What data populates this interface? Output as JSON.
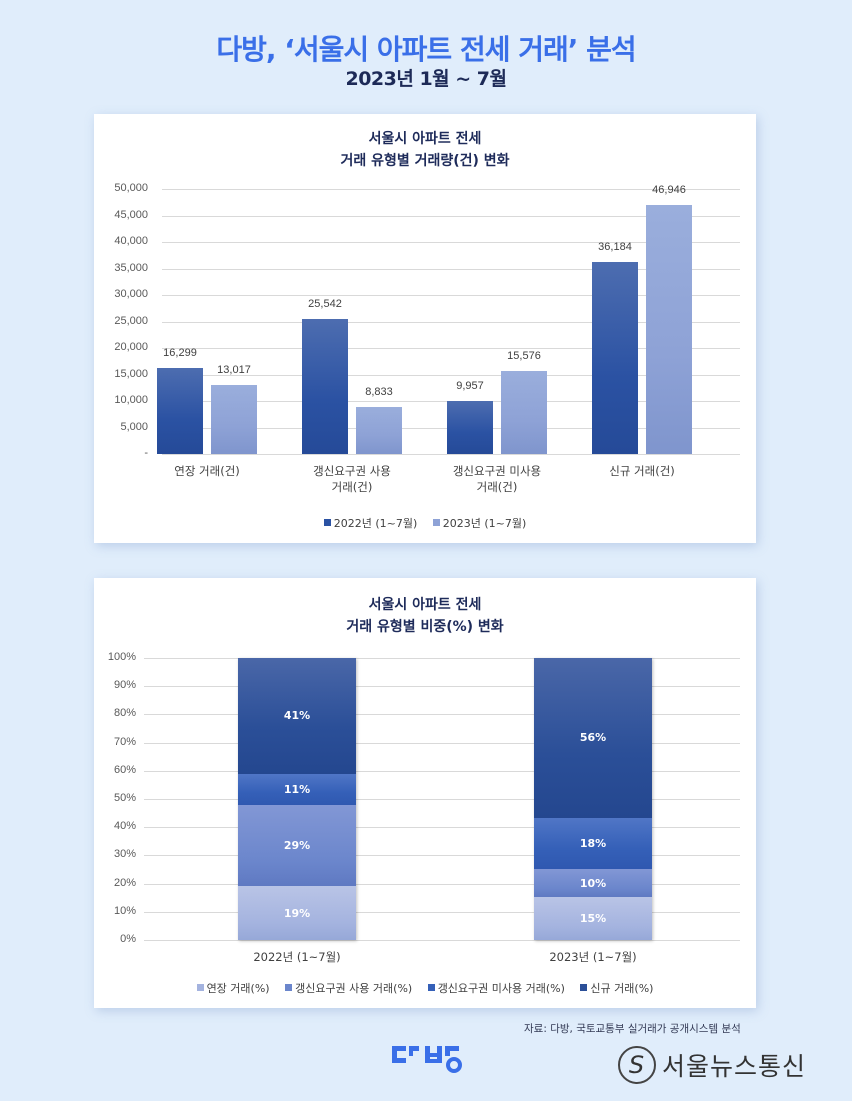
{
  "header": {
    "title": "다방, ‘서울시 아파트 전세 거래’ 분석",
    "subtitle": "2023년 1월 ~ 7월"
  },
  "colors": {
    "title_blue": "#3a6fe8",
    "subtitle_navy": "#1d2a57",
    "background": "#e0edfb",
    "series_2022": "#2b52a3",
    "series_2023": "#8ea2d6",
    "share_renewal": "#a4b3df",
    "share_used": "#6b86cc",
    "share_unused": "#3560b8",
    "share_new": "#2b4f98"
  },
  "chart1": {
    "title_line1": "서울시 아파트 전세",
    "title_line2": "거래 유형별 거래량(건) 변화",
    "yticks": [
      "50,000",
      "45,000",
      "40,000",
      "35,000",
      "30,000",
      "25,000",
      "20,000",
      "15,000",
      "10,000",
      "5,000",
      "-"
    ],
    "categories": [
      {
        "line1": "연장 거래(건)",
        "line2": ""
      },
      {
        "line1": "갱신요구권 사용",
        "line2": "거래(건)"
      },
      {
        "line1": "갱신요구권 미사용",
        "line2": "거래(건)"
      },
      {
        "line1": "신규 거래(건)",
        "line2": ""
      }
    ],
    "labels_2022": [
      "16,299",
      "25,542",
      "9,957",
      "36,184"
    ],
    "labels_2023": [
      "13,017",
      "8,833",
      "15,576",
      "46,946"
    ],
    "legend": [
      "2022년 (1~7월)",
      "2023년 (1~7월)"
    ]
  },
  "chart2": {
    "title_line1": "서울시 아파트 전세",
    "title_line2": "거래 유형별 비중(%) 변화",
    "yticks": [
      "100%",
      "90%",
      "80%",
      "70%",
      "60%",
      "50%",
      "40%",
      "30%",
      "20%",
      "10%",
      "0%"
    ],
    "categories": [
      "2022년 (1~7월)",
      "2023년 (1~7월)"
    ],
    "bar_2022": {
      "renewal": "19%",
      "used": "29%",
      "unused": "11%",
      "new": "41%"
    },
    "bar_2023": {
      "renewal": "15%",
      "used": "10%",
      "unused": "18%",
      "new": "56%"
    },
    "legend": [
      "연장 거래(%)",
      "갱신요구권 사용 거래(%)",
      "갱신요구권 미사용 거래(%)",
      "신규 거래(%)"
    ]
  },
  "footer": {
    "source": "자료: 다방, 국토교통부 실거래가 공개시스템 분석",
    "brand_logo": "다방",
    "news_logo": "서울뉴스통신",
    "news_logo_mark": "S"
  },
  "chart_data": [
    {
      "type": "bar",
      "title": "서울시 아파트 전세 거래 유형별 거래량(건) 변화",
      "categories": [
        "연장 거래(건)",
        "갱신요구권 사용 거래(건)",
        "갱신요구권 미사용 거래(건)",
        "신규 거래(건)"
      ],
      "series": [
        {
          "name": "2022년 (1~7월)",
          "values": [
            16299,
            25542,
            9957,
            36184
          ]
        },
        {
          "name": "2023년 (1~7월)",
          "values": [
            13017,
            8833,
            15576,
            46946
          ]
        }
      ],
      "xlabel": "",
      "ylabel": "",
      "ylim": [
        0,
        50000
      ],
      "yticks": [
        0,
        5000,
        10000,
        15000,
        20000,
        25000,
        30000,
        35000,
        40000,
        45000,
        50000
      ],
      "grid": true,
      "legend_position": "bottom",
      "data_labels": true
    },
    {
      "type": "bar",
      "stacked": true,
      "percent": true,
      "title": "서울시 아파트 전세 거래 유형별 비중(%) 변화",
      "categories": [
        "2022년 (1~7월)",
        "2023년 (1~7월)"
      ],
      "series": [
        {
          "name": "연장 거래(%)",
          "values": [
            19,
            15
          ]
        },
        {
          "name": "갱신요구권 사용 거래(%)",
          "values": [
            29,
            10
          ]
        },
        {
          "name": "갱신요구권 미사용 거래(%)",
          "values": [
            11,
            18
          ]
        },
        {
          "name": "신규 거래(%)",
          "values": [
            41,
            56
          ]
        }
      ],
      "xlabel": "",
      "ylabel": "",
      "ylim": [
        0,
        100
      ],
      "yticks": [
        0,
        10,
        20,
        30,
        40,
        50,
        60,
        70,
        80,
        90,
        100
      ],
      "grid": true,
      "legend_position": "bottom",
      "data_labels": true
    }
  ]
}
